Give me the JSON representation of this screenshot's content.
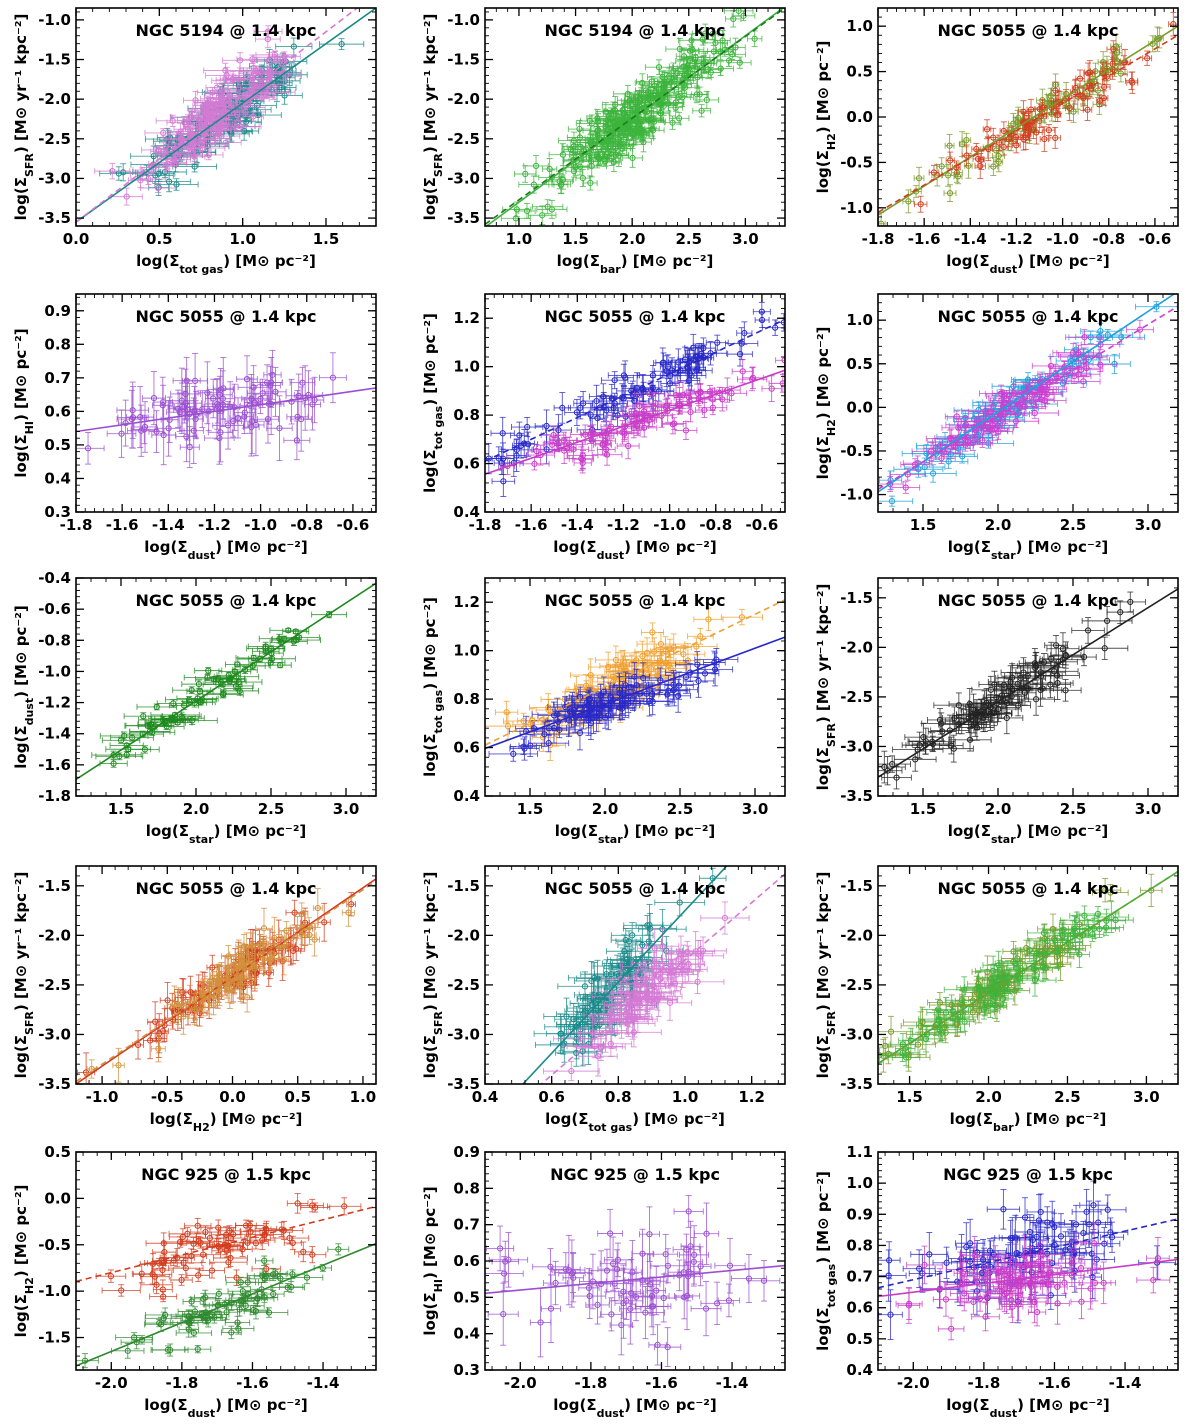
{
  "figure": {
    "rows": 5,
    "cols": 3
  },
  "chart_data": [
    {
      "type": "scatter",
      "title": "NGC 5194 @ 1.4 kpc",
      "xlabel": "log(Σ_tot gas) [M⊙ pc⁻²]",
      "ylabel": "log(Σ_SFR) [M⊙ yr⁻¹ kpc⁻²]",
      "xlim": [
        0.0,
        1.8
      ],
      "ylim": [
        -3.6,
        -0.85
      ],
      "xticks": [
        0.0,
        0.5,
        1.0,
        1.5
      ],
      "xtick_labels": [
        "0.0",
        "0.5",
        "1.0",
        "1.5"
      ],
      "yticks": [
        -3.5,
        -3.0,
        -2.5,
        -2.0,
        -1.5,
        -1.0
      ],
      "ytick_labels": [
        "-3.5",
        "-3.0",
        "-2.5",
        "-2.0",
        "-1.5",
        "-1.0"
      ],
      "series": [
        {
          "name": "teal",
          "color": "#1a8a8a",
          "fit_style": "solid",
          "fit": [
            1.5,
            -3.55
          ],
          "cloud": {
            "n": 130,
            "xc": 0.9,
            "xs": 0.25,
            "ys": 0.2,
            "xerr": 0.1,
            "yerr": 0.1
          }
        },
        {
          "name": "violet",
          "color": "#d47ad4",
          "fit_style": "dashed",
          "fit": [
            1.6,
            -3.55
          ],
          "cloud": {
            "n": 150,
            "xc": 0.85,
            "xs": 0.22,
            "ys": 0.2,
            "xerr": 0.1,
            "yerr": 0.08
          }
        }
      ]
    },
    {
      "type": "scatter",
      "title": "NGC 5194 @ 1.4 kpc",
      "xlabel": "log(Σ_bar) [M⊙ pc⁻²]",
      "ylabel": "log(Σ_SFR) [M⊙ yr⁻¹ kpc⁻²]",
      "xlim": [
        0.7,
        3.35
      ],
      "ylim": [
        -3.6,
        -0.85
      ],
      "xticks": [
        1.0,
        1.5,
        2.0,
        2.5,
        3.0
      ],
      "xtick_labels": [
        "1.0",
        "1.5",
        "2.0",
        "2.5",
        "3.0"
      ],
      "yticks": [
        -3.5,
        -3.0,
        -2.5,
        -2.0,
        -1.5,
        -1.0
      ],
      "ytick_labels": [
        "-3.5",
        "-3.0",
        "-2.5",
        "-2.0",
        "-1.5",
        "-1.0"
      ],
      "series": [
        {
          "name": "green",
          "color": "#3cb43c",
          "fit_style": "solid",
          "fit": [
            1.05,
            -4.35
          ],
          "cloud": {
            "n": 260,
            "xc": 2.0,
            "xs": 0.45,
            "ys": 0.18,
            "xerr": 0.1,
            "yerr": 0.1
          }
        },
        {
          "name": "dark-green",
          "color": "#1e7a1e",
          "fit_style": "dashed",
          "fit": [
            1.03,
            -4.3
          ],
          "cloud": {
            "n": 0,
            "xc": 2.0,
            "xs": 0.4,
            "ys": 0.2,
            "xerr": 0.1,
            "yerr": 0.1
          }
        }
      ]
    },
    {
      "type": "scatter",
      "title": "NGC 5055 @ 1.4 kpc",
      "xlabel": "log(Σ_dust) [M⊙ pc⁻²]",
      "ylabel": "log(Σ_H2) [M⊙ pc⁻²]",
      "xlim": [
        -1.8,
        -0.5
      ],
      "ylim": [
        -1.2,
        1.2
      ],
      "xticks": [
        -1.8,
        -1.6,
        -1.4,
        -1.2,
        -1.0,
        -0.8,
        -0.6
      ],
      "xtick_labels": [
        "-1.8",
        "-1.6",
        "-1.4",
        "-1.2",
        "-1.0",
        "-0.8",
        "-0.6"
      ],
      "yticks": [
        -1.0,
        -0.5,
        0.0,
        0.5,
        1.0
      ],
      "ytick_labels": [
        "-1.0",
        "-0.5",
        "0.0",
        "0.5",
        "1.0"
      ],
      "series": [
        {
          "name": "olive",
          "color": "#7a9a2a",
          "fit_style": "solid",
          "fit": [
            1.6,
            1.8
          ],
          "cloud": {
            "n": 70,
            "xc": -1.1,
            "xs": 0.28,
            "ys": 0.12,
            "xerr": 0.02,
            "yerr": 0.1
          }
        },
        {
          "name": "red",
          "color": "#d23c1e",
          "fit_style": "dashed",
          "fit": [
            1.5,
            1.65
          ],
          "cloud": {
            "n": 70,
            "xc": -1.1,
            "xs": 0.28,
            "ys": 0.12,
            "xerr": 0.02,
            "yerr": 0.1
          }
        }
      ]
    },
    {
      "type": "scatter",
      "title": "NGC 5055 @ 1.4 kpc",
      "xlabel": "log(Σ_dust) [M⊙ pc⁻²]",
      "ylabel": "log(Σ_HI) [M⊙ pc⁻²]",
      "xlim": [
        -1.8,
        -0.5
      ],
      "ylim": [
        0.3,
        0.95
      ],
      "xticks": [
        -1.8,
        -1.6,
        -1.4,
        -1.2,
        -1.0,
        -0.8,
        -0.6
      ],
      "xtick_labels": [
        "-1.8",
        "-1.6",
        "-1.4",
        "-1.2",
        "-1.0",
        "-0.8",
        "-0.6"
      ],
      "yticks": [
        0.3,
        0.4,
        0.5,
        0.6,
        0.7,
        0.8,
        0.9
      ],
      "ytick_labels": [
        "0.3",
        "0.4",
        "0.5",
        "0.6",
        "0.7",
        "0.8",
        "0.9"
      ],
      "series": [
        {
          "name": "purple",
          "color": "#9b4fd0",
          "fit_style": "solid",
          "fit": [
            0.1,
            0.72
          ],
          "cloud": {
            "n": 85,
            "xc": -1.15,
            "xs": 0.28,
            "ys": 0.05,
            "xerr": 0.05,
            "yerr": 0.07
          }
        }
      ]
    },
    {
      "type": "scatter",
      "title": "NGC 5055 @ 1.4 kpc",
      "xlabel": "log(Σ_dust) [M⊙ pc⁻²]",
      "ylabel": "log(Σ_tot gas) [M⊙ pc⁻²]",
      "xlim": [
        -1.8,
        -0.5
      ],
      "ylim": [
        0.4,
        1.3
      ],
      "xticks": [
        -1.8,
        -1.6,
        -1.4,
        -1.2,
        -1.0,
        -0.8,
        -0.6
      ],
      "xtick_labels": [
        "-1.8",
        "-1.6",
        "-1.4",
        "-1.2",
        "-1.0",
        "-0.8",
        "-0.6"
      ],
      "yticks": [
        0.4,
        0.6,
        0.8,
        1.0,
        1.2
      ],
      "ytick_labels": [
        "0.4",
        "0.6",
        "0.8",
        "1.0",
        "1.2"
      ],
      "series": [
        {
          "name": "blue",
          "color": "#2828c8",
          "fit_style": "dashed",
          "fit": [
            0.45,
            1.42
          ],
          "cloud": {
            "n": 90,
            "xc": -1.15,
            "xs": 0.28,
            "ys": 0.05,
            "xerr": 0.05,
            "yerr": 0.05
          }
        },
        {
          "name": "magenta",
          "color": "#c83cc8",
          "fit_style": "solid",
          "fit": [
            0.33,
            1.15
          ],
          "cloud": {
            "n": 90,
            "xc": -1.15,
            "xs": 0.28,
            "ys": 0.04,
            "xerr": 0.05,
            "yerr": 0.04
          }
        }
      ]
    },
    {
      "type": "scatter",
      "title": "NGC 5055 @ 1.4 kpc",
      "xlabel": "log(Σ_star) [M⊙ pc⁻²]",
      "ylabel": "log(Σ_H2) [M⊙ pc⁻²]",
      "xlim": [
        1.2,
        3.2
      ],
      "ylim": [
        -1.2,
        1.3
      ],
      "xticks": [
        1.5,
        2.0,
        2.5,
        3.0
      ],
      "xtick_labels": [
        "1.5",
        "2.0",
        "2.5",
        "3.0"
      ],
      "yticks": [
        -1.0,
        -0.5,
        0.0,
        0.5,
        1.0
      ],
      "ytick_labels": [
        "-1.0",
        "-0.5",
        "0.0",
        "0.5",
        "1.0"
      ],
      "series": [
        {
          "name": "cyan",
          "color": "#1ea0dc",
          "fit_style": "solid",
          "fit": [
            1.15,
            -2.35
          ],
          "cloud": {
            "n": 85,
            "xc": 2.05,
            "xs": 0.35,
            "ys": 0.12,
            "xerr": 0.12,
            "yerr": 0.08
          }
        },
        {
          "name": "magenta",
          "color": "#d23cd2",
          "fit_style": "dashed",
          "fit": [
            1.05,
            -2.2
          ],
          "cloud": {
            "n": 85,
            "xc": 2.05,
            "xs": 0.35,
            "ys": 0.12,
            "xerr": 0.12,
            "yerr": 0.08
          }
        }
      ]
    },
    {
      "type": "scatter",
      "title": "NGC 5055 @ 1.4 kpc",
      "xlabel": "log(Σ_star) [M⊙ pc⁻²]",
      "ylabel": "log(Σ_dust) [M⊙ pc⁻²]",
      "xlim": [
        1.2,
        3.2
      ],
      "ylim": [
        -1.8,
        -0.4
      ],
      "xticks": [
        1.5,
        2.0,
        2.5,
        3.0
      ],
      "xtick_labels": [
        "1.5",
        "2.0",
        "2.5",
        "3.0"
      ],
      "yticks": [
        -1.8,
        -1.6,
        -1.4,
        -1.2,
        -1.0,
        -0.8,
        -0.6,
        -0.4
      ],
      "ytick_labels": [
        "-1.8",
        "-1.6",
        "-1.4",
        "-1.2",
        "-1.0",
        "-0.8",
        "-0.6",
        "-0.4"
      ],
      "series": [
        {
          "name": "green",
          "color": "#1e8a1e",
          "fit_style": "solid",
          "fit": [
            0.63,
            -2.45
          ],
          "cloud": {
            "n": 85,
            "xc": 2.05,
            "xs": 0.35,
            "ys": 0.05,
            "xerr": 0.12,
            "yerr": 0.02
          }
        }
      ]
    },
    {
      "type": "scatter",
      "title": "NGC 5055 @ 1.4 kpc",
      "xlabel": "log(Σ_star) [M⊙ pc⁻²]",
      "ylabel": "log(Σ_tot gas) [M⊙ pc⁻²]",
      "xlim": [
        1.2,
        3.2
      ],
      "ylim": [
        0.4,
        1.3
      ],
      "xticks": [
        1.5,
        2.0,
        2.5,
        3.0
      ],
      "xtick_labels": [
        "1.5",
        "2.0",
        "2.5",
        "3.0"
      ],
      "yticks": [
        0.4,
        0.6,
        0.8,
        1.0,
        1.2
      ],
      "ytick_labels": [
        "0.4",
        "0.6",
        "0.8",
        "1.0",
        "1.2"
      ],
      "series": [
        {
          "name": "orange",
          "color": "#f0a030",
          "fit_style": "dashed",
          "fit": [
            0.3,
            0.25
          ],
          "cloud": {
            "n": 90,
            "xc": 2.05,
            "xs": 0.35,
            "ys": 0.05,
            "xerr": 0.12,
            "yerr": 0.05
          }
        },
        {
          "name": "blue",
          "color": "#2828c8",
          "fit_style": "solid",
          "fit": [
            0.23,
            0.32
          ],
          "cloud": {
            "n": 90,
            "xc": 2.05,
            "xs": 0.35,
            "ys": 0.04,
            "xerr": 0.12,
            "yerr": 0.05
          }
        }
      ]
    },
    {
      "type": "scatter",
      "title": "NGC 5055 @ 1.4 kpc",
      "xlabel": "log(Σ_star) [M⊙ pc⁻²]",
      "ylabel": "log(Σ_SFR) [M⊙ yr⁻¹ kpc⁻²]",
      "xlim": [
        1.2,
        3.2
      ],
      "ylim": [
        -3.5,
        -1.3
      ],
      "xticks": [
        1.5,
        2.0,
        2.5,
        3.0
      ],
      "xtick_labels": [
        "1.5",
        "2.0",
        "2.5",
        "3.0"
      ],
      "yticks": [
        -3.5,
        -3.0,
        -2.5,
        -2.0,
        -1.5
      ],
      "ytick_labels": [
        "-3.5",
        "-3.0",
        "-2.5",
        "-2.0",
        "-1.5"
      ],
      "series": [
        {
          "name": "black",
          "color": "#222222",
          "fit_style": "solid",
          "fit": [
            0.95,
            -4.45
          ],
          "cloud": {
            "n": 100,
            "xc": 2.05,
            "xs": 0.35,
            "ys": 0.12,
            "xerr": 0.12,
            "yerr": 0.12
          }
        }
      ]
    },
    {
      "type": "scatter",
      "title": "NGC 5055 @ 1.4 kpc",
      "xlabel": "log(Σ_H2) [M⊙ pc⁻²]",
      "ylabel": "log(Σ_SFR) [M⊙ yr⁻¹ kpc⁻²]",
      "xlim": [
        -1.2,
        1.1
      ],
      "ylim": [
        -3.5,
        -1.3
      ],
      "xticks": [
        -1.0,
        -0.5,
        0.0,
        0.5,
        1.0
      ],
      "xtick_labels": [
        "-1.0",
        "-0.5",
        "0.0",
        "0.5",
        "1.0"
      ],
      "yticks": [
        -3.5,
        -3.0,
        -2.5,
        -2.0,
        -1.5
      ],
      "ytick_labels": [
        "-3.5",
        "-3.0",
        "-2.5",
        "-2.0",
        "-1.5"
      ],
      "series": [
        {
          "name": "red",
          "color": "#d23c1e",
          "fit_style": "solid",
          "fit": [
            0.9,
            -2.42
          ],
          "cloud": {
            "n": 85,
            "xc": 0.0,
            "xs": 0.35,
            "ys": 0.1,
            "xerr": 0.05,
            "yerr": 0.15
          }
        },
        {
          "name": "tan",
          "color": "#d2913c",
          "fit_style": "dashed",
          "fit": [
            0.88,
            -2.42
          ],
          "cloud": {
            "n": 85,
            "xc": 0.0,
            "xs": 0.35,
            "ys": 0.1,
            "xerr": 0.05,
            "yerr": 0.15
          }
        }
      ]
    },
    {
      "type": "scatter",
      "title": "NGC 5055 @ 1.4 kpc",
      "xlabel": "log(Σ_tot gas) [M⊙ pc⁻²]",
      "ylabel": "log(Σ_SFR) [M⊙ yr⁻¹ kpc⁻²]",
      "xlim": [
        0.4,
        1.3
      ],
      "ylim": [
        -3.5,
        -1.3
      ],
      "xticks": [
        0.4,
        0.6,
        0.8,
        1.0,
        1.2
      ],
      "xtick_labels": [
        "0.4",
        "0.6",
        "0.8",
        "1.0",
        "1.2"
      ],
      "yticks": [
        -3.5,
        -3.0,
        -2.5,
        -2.0,
        -1.5
      ],
      "ytick_labels": [
        "-3.5",
        "-3.0",
        "-2.5",
        "-2.0",
        "-1.5"
      ],
      "series": [
        {
          "name": "teal",
          "color": "#1a8a8a",
          "fit_style": "solid",
          "fit": [
            3.6,
            -5.35
          ],
          "cloud": {
            "n": 90,
            "xc": 0.78,
            "xs": 0.1,
            "ys": 0.15,
            "xerr": 0.06,
            "yerr": 0.15
          }
        },
        {
          "name": "violet",
          "color": "#d47ad4",
          "fit_style": "dashed",
          "fit": [
            2.9,
            -5.15
          ],
          "cloud": {
            "n": 90,
            "xc": 0.88,
            "xs": 0.1,
            "ys": 0.15,
            "xerr": 0.06,
            "yerr": 0.15
          }
        }
      ]
    },
    {
      "type": "scatter",
      "title": "NGC 5055 @ 1.4 kpc",
      "xlabel": "log(Σ_bar) [M⊙ pc⁻²]",
      "ylabel": "log(Σ_SFR) [M⊙ yr⁻¹ kpc⁻²]",
      "xlim": [
        1.3,
        3.2
      ],
      "ylim": [
        -3.5,
        -1.3
      ],
      "xticks": [
        1.5,
        2.0,
        2.5,
        3.0
      ],
      "xtick_labels": [
        "1.5",
        "2.0",
        "2.5",
        "3.0"
      ],
      "yticks": [
        -3.5,
        -3.0,
        -2.5,
        -2.0,
        -1.5
      ],
      "ytick_labels": [
        "-3.5",
        "-3.0",
        "-2.5",
        "-2.0",
        "-1.5"
      ],
      "series": [
        {
          "name": "olive",
          "color": "#7a9a2a",
          "fit_style": "solid",
          "fit": [
            1.02,
            -4.62
          ],
          "cloud": {
            "n": 85,
            "xc": 2.1,
            "xs": 0.35,
            "ys": 0.1,
            "xerr": 0.1,
            "yerr": 0.12
          }
        },
        {
          "name": "green",
          "color": "#3cb43c",
          "fit_style": "dashed",
          "fit": [
            1.02,
            -4.62
          ],
          "cloud": {
            "n": 85,
            "xc": 2.1,
            "xs": 0.35,
            "ys": 0.1,
            "xerr": 0.1,
            "yerr": 0.12
          }
        }
      ]
    },
    {
      "type": "scatter",
      "title": "NGC 925 @ 1.5 kpc",
      "xlabel": "log(Σ_dust) [M⊙ pc⁻²]",
      "ylabel": "log(Σ_H2) [M⊙ pc⁻²]",
      "xlim": [
        -2.1,
        -1.25
      ],
      "ylim": [
        -1.85,
        0.5
      ],
      "xticks": [
        -2.0,
        -1.8,
        -1.6,
        -1.4
      ],
      "xtick_labels": [
        "-2.0",
        "-1.8",
        "-1.6",
        "-1.4"
      ],
      "yticks": [
        -1.5,
        -1.0,
        -0.5,
        0.0,
        0.5
      ],
      "ytick_labels": [
        "-1.5",
        "-1.0",
        "-0.5",
        "0.0",
        "0.5"
      ],
      "series": [
        {
          "name": "red",
          "color": "#d23c1e",
          "fit_style": "dashed",
          "fit": [
            0.95,
            1.1
          ],
          "cloud": {
            "n": 70,
            "xc": -1.7,
            "xs": 0.15,
            "ys": 0.15,
            "xerr": 0.04,
            "yerr": 0.08
          }
        },
        {
          "name": "green",
          "color": "#2e8a2e",
          "fit_style": "solid",
          "fit": [
            1.55,
            1.45
          ],
          "cloud": {
            "n": 70,
            "xc": -1.7,
            "xs": 0.15,
            "ys": 0.12,
            "xerr": 0.04,
            "yerr": 0.06
          }
        }
      ]
    },
    {
      "type": "scatter",
      "title": "NGC 925 @ 1.5 kpc",
      "xlabel": "log(Σ_dust) [M⊙ pc⁻²]",
      "ylabel": "log(Σ_HI) [M⊙ pc⁻²]",
      "xlim": [
        -2.1,
        -1.25
      ],
      "ylim": [
        0.3,
        0.9
      ],
      "xticks": [
        -2.0,
        -1.8,
        -1.6,
        -1.4
      ],
      "xtick_labels": [
        "-2.0",
        "-1.8",
        "-1.6",
        "-1.4"
      ],
      "yticks": [
        0.3,
        0.4,
        0.5,
        0.6,
        0.7,
        0.8,
        0.9
      ],
      "ytick_labels": [
        "0.3",
        "0.4",
        "0.5",
        "0.6",
        "0.7",
        "0.8",
        "0.9"
      ],
      "series": [
        {
          "name": "purple",
          "color": "#9b4fd0",
          "fit_style": "solid",
          "fit": [
            0.09,
            0.7
          ],
          "cloud": {
            "n": 70,
            "xc": -1.7,
            "xs": 0.15,
            "ys": 0.07,
            "xerr": 0.04,
            "yerr": 0.07
          }
        }
      ]
    },
    {
      "type": "scatter",
      "title": "NGC 925 @ 1.5 kpc",
      "xlabel": "log(Σ_dust) [M⊙ pc⁻²]",
      "ylabel": "log(Σ_tot gas) [M⊙ pc⁻²]",
      "xlim": [
        -2.1,
        -1.25
      ],
      "ylim": [
        0.4,
        1.1
      ],
      "xticks": [
        -2.0,
        -1.8,
        -1.6,
        -1.4
      ],
      "xtick_labels": [
        "-2.0",
        "-1.8",
        "-1.6",
        "-1.4"
      ],
      "yticks": [
        0.4,
        0.5,
        0.6,
        0.7,
        0.8,
        0.9,
        1.0,
        1.1
      ],
      "ytick_labels": [
        "0.4",
        "0.5",
        "0.6",
        "0.7",
        "0.8",
        "0.9",
        "1.0",
        "1.1"
      ],
      "series": [
        {
          "name": "blue",
          "color": "#2828c8",
          "fit_style": "dashed",
          "fit": [
            0.26,
            1.21
          ],
          "cloud": {
            "n": 80,
            "xc": -1.7,
            "xs": 0.15,
            "ys": 0.06,
            "xerr": 0.04,
            "yerr": 0.06
          }
        },
        {
          "name": "magenta",
          "color": "#c83cc8",
          "fit_style": "solid",
          "fit": [
            0.14,
            0.93
          ],
          "cloud": {
            "n": 80,
            "xc": -1.7,
            "xs": 0.15,
            "ys": 0.05,
            "xerr": 0.04,
            "yerr": 0.05
          }
        }
      ]
    }
  ]
}
